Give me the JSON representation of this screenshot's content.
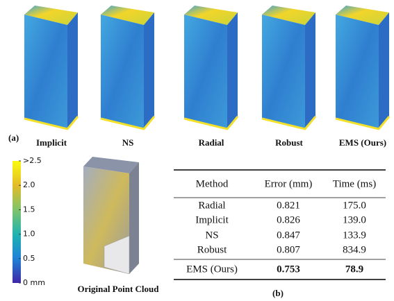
{
  "panel_a": {
    "tag": "(a)",
    "methods": [
      "Implicit",
      "NS",
      "Radial",
      "Robust",
      "EMS (Ours)"
    ]
  },
  "colorbar": {
    "ticks": [
      ">2.5",
      "2.0",
      "1.5",
      "1.0",
      "0.5",
      "0 mm"
    ]
  },
  "point_cloud_label": "Original Point Cloud",
  "table": {
    "tag": "(b)",
    "header": [
      "Method",
      "Error (mm)",
      "Time (ms)"
    ],
    "rows": [
      [
        "Radial",
        "0.821",
        "175.0"
      ],
      [
        "Implicit",
        "0.826",
        "139.0"
      ],
      [
        "NS",
        "0.847",
        "133.9"
      ],
      [
        "Robust",
        "0.807",
        "834.9"
      ],
      [
        "EMS (Ours)",
        "0.753",
        "78.9"
      ]
    ]
  }
}
